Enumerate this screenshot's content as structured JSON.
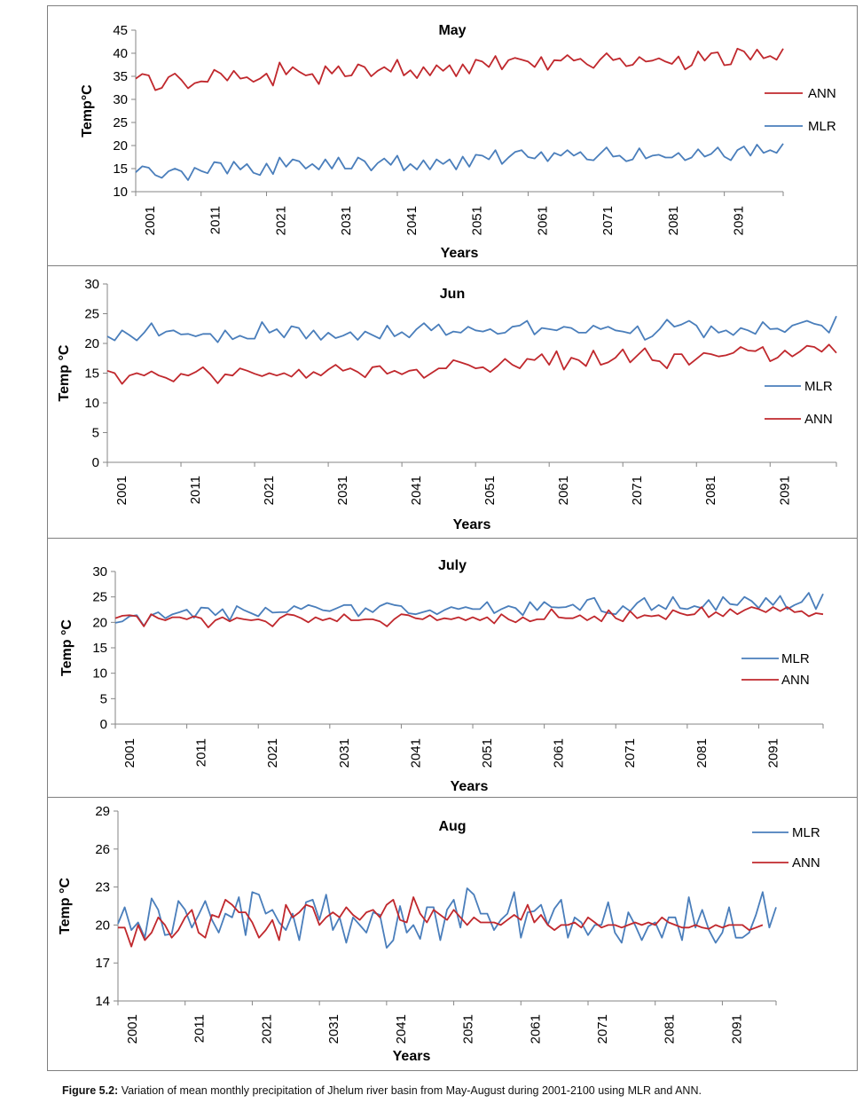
{
  "caption": {
    "label": "Figure 5.2:",
    "text": " Variation of mean monthly precipitation of Jhelum river basin from May-August during 2001-2100 using MLR and ANN."
  },
  "colors": {
    "ANN": "#c0282d",
    "MLR": "#4a7ebb"
  },
  "chart_data": [
    {
      "type": "line",
      "title": "May",
      "xlabel": "Years",
      "ylabel": "Temp°C",
      "ylim": [
        10,
        45
      ],
      "yticks": [
        10,
        15,
        20,
        25,
        30,
        35,
        40,
        45
      ],
      "x_tick_labels": [
        "2001",
        "2011",
        "2021",
        "2031",
        "2041",
        "2051",
        "2061",
        "2071",
        "2081",
        "2091"
      ],
      "x_start": 2001,
      "legend_position": "right",
      "legend_order": [
        "ANN",
        "MLR"
      ],
      "series": [
        {
          "name": "ANN",
          "values": [
            34.5,
            35.5,
            35.2,
            32.0,
            32.5,
            34.8,
            35.6,
            34.2,
            32.4,
            33.5,
            33.9,
            33.8,
            36.4,
            35.6,
            34.1,
            36.2,
            34.5,
            34.8,
            33.8,
            34.5,
            35.6,
            33.0,
            38.0,
            35.4,
            37.0,
            36.0,
            35.2,
            35.5,
            33.3,
            37.2,
            35.6,
            37.2,
            35.0,
            35.2,
            37.6,
            37.0,
            35.0,
            36.2,
            37.0,
            36.0,
            38.6,
            35.2,
            36.3,
            34.6,
            37.0,
            35.2,
            37.4,
            36.2,
            37.4,
            35.0,
            37.6,
            35.6,
            38.6,
            38.2,
            37.0,
            39.4,
            36.5,
            38.5,
            39.0,
            38.6,
            38.2,
            37.0,
            39.2,
            36.4,
            38.5,
            38.4,
            39.6,
            38.4,
            38.8,
            37.6,
            36.8,
            38.6,
            40.0,
            38.5,
            38.9,
            37.2,
            37.5,
            39.2,
            38.2,
            38.4,
            38.9,
            38.2,
            37.7,
            39.3,
            36.5,
            37.4,
            40.4,
            38.4,
            40.0,
            40.2,
            37.4,
            37.6,
            41.0,
            40.4,
            38.6,
            40.8,
            38.9,
            39.4,
            38.6,
            41.0
          ]
        },
        {
          "name": "MLR",
          "values": [
            14.2,
            15.5,
            15.2,
            13.6,
            13.0,
            14.4,
            15.0,
            14.4,
            12.5,
            15.2,
            14.5,
            14.0,
            16.4,
            16.2,
            13.9,
            16.5,
            14.8,
            16.0,
            14.1,
            13.6,
            16.1,
            13.8,
            17.4,
            15.4,
            17.0,
            16.6,
            15.0,
            16.0,
            14.8,
            17.0,
            15.0,
            17.4,
            15.0,
            15.0,
            17.4,
            16.6,
            14.6,
            16.2,
            17.2,
            15.8,
            17.8,
            14.6,
            16.0,
            14.8,
            16.8,
            14.8,
            17.0,
            16.0,
            17.0,
            14.8,
            17.6,
            15.4,
            18.0,
            17.8,
            17.0,
            19.0,
            16.0,
            17.4,
            18.6,
            19.0,
            17.5,
            17.2,
            18.6,
            16.6,
            18.4,
            17.8,
            19.0,
            17.8,
            18.6,
            17.0,
            16.8,
            18.2,
            19.6,
            17.6,
            17.8,
            16.6,
            17.0,
            19.4,
            17.2,
            17.8,
            18.0,
            17.4,
            17.4,
            18.4,
            16.8,
            17.4,
            19.2,
            17.6,
            18.2,
            19.6,
            17.6,
            16.8,
            19.0,
            19.8,
            17.8,
            20.2,
            18.4,
            19.0,
            18.4,
            20.4
          ]
        }
      ]
    },
    {
      "type": "line",
      "title": "Jun",
      "xlabel": "Years",
      "ylabel": "Temp °C",
      "ylim": [
        0,
        30
      ],
      "yticks": [
        0,
        5,
        10,
        15,
        20,
        25,
        30
      ],
      "x_tick_labels": [
        "2001",
        "2011",
        "2021",
        "2031",
        "2041",
        "2051",
        "2061",
        "2071",
        "2081",
        "2091"
      ],
      "x_start": 2001,
      "legend_position": "right",
      "legend_order": [
        "MLR",
        "ANN"
      ],
      "series": [
        {
          "name": "MLR",
          "values": [
            21.2,
            20.5,
            22.2,
            21.4,
            20.5,
            21.8,
            23.4,
            21.3,
            22.0,
            22.2,
            21.5,
            21.6,
            21.2,
            21.6,
            21.6,
            20.2,
            22.2,
            20.7,
            21.3,
            20.8,
            20.8,
            23.6,
            21.8,
            22.4,
            21.0,
            22.9,
            22.6,
            20.8,
            22.2,
            20.6,
            21.8,
            20.9,
            21.3,
            21.9,
            20.6,
            22.0,
            21.4,
            20.8,
            23.0,
            21.2,
            21.9,
            21.0,
            22.4,
            23.4,
            22.2,
            23.2,
            21.4,
            22.0,
            21.8,
            22.8,
            22.2,
            22.0,
            22.4,
            21.6,
            21.8,
            22.8,
            23.0,
            23.8,
            21.5,
            22.6,
            22.4,
            22.2,
            22.8,
            22.6,
            21.8,
            21.8,
            23.0,
            22.4,
            22.8,
            22.2,
            22.0,
            21.7,
            22.9,
            20.6,
            21.2,
            22.4,
            24.0,
            22.8,
            23.2,
            23.8,
            23.0,
            21.0,
            22.9,
            21.8,
            22.2,
            21.4,
            22.6,
            22.2,
            21.6,
            23.6,
            22.4,
            22.5,
            21.9,
            23.0,
            23.4,
            23.8,
            23.3,
            23.0,
            21.8,
            24.6
          ]
        },
        {
          "name": "ANN",
          "values": [
            15.4,
            15.0,
            13.2,
            14.6,
            15.0,
            14.6,
            15.3,
            14.6,
            14.2,
            13.6,
            14.9,
            14.6,
            15.2,
            16.0,
            14.8,
            13.3,
            14.8,
            14.6,
            15.8,
            15.4,
            14.9,
            14.5,
            15.0,
            14.6,
            15.0,
            14.4,
            15.6,
            14.2,
            15.2,
            14.6,
            15.6,
            16.4,
            15.4,
            15.8,
            15.2,
            14.3,
            16.0,
            16.2,
            14.9,
            15.4,
            14.8,
            15.4,
            15.6,
            14.2,
            15.0,
            15.8,
            15.8,
            17.2,
            16.8,
            16.4,
            15.8,
            16.0,
            15.2,
            16.2,
            17.4,
            16.4,
            15.8,
            17.4,
            17.2,
            18.2,
            16.4,
            18.7,
            15.6,
            17.6,
            17.2,
            16.2,
            18.8,
            16.4,
            16.8,
            17.6,
            19.0,
            16.8,
            18.0,
            19.2,
            17.2,
            17.0,
            15.8,
            18.2,
            18.2,
            16.4,
            17.4,
            18.4,
            18.2,
            17.8,
            18.0,
            18.4,
            19.4,
            18.8,
            18.7,
            19.4,
            17.0,
            17.6,
            18.8,
            17.8,
            18.6,
            19.6,
            19.4,
            18.6,
            19.8,
            18.4
          ]
        }
      ]
    },
    {
      "type": "line",
      "title": "July",
      "xlabel": "Years",
      "ylabel": "Temp °C",
      "ylim": [
        0,
        30
      ],
      "yticks": [
        0,
        5,
        10,
        15,
        20,
        25,
        30
      ],
      "x_tick_labels": [
        "2001",
        "2011",
        "2021",
        "2031",
        "2041",
        "2051",
        "2061",
        "2071",
        "2081",
        "2091"
      ],
      "x_start": 2001,
      "legend_position": "right",
      "legend_order": [
        "MLR",
        "ANN"
      ],
      "series": [
        {
          "name": "MLR",
          "values": [
            19.9,
            20.2,
            21.2,
            21.4,
            19.3,
            21.4,
            22.0,
            20.8,
            21.6,
            22.0,
            22.5,
            20.9,
            22.9,
            22.8,
            21.4,
            22.6,
            20.4,
            23.2,
            22.4,
            21.8,
            21.2,
            22.9,
            21.9,
            22.0,
            22.0,
            23.2,
            22.6,
            23.4,
            23.0,
            22.4,
            22.2,
            22.8,
            23.4,
            23.4,
            21.2,
            22.8,
            22.0,
            23.2,
            23.8,
            23.4,
            23.2,
            21.8,
            21.6,
            22.0,
            22.4,
            21.6,
            22.4,
            23.0,
            22.6,
            23.0,
            22.6,
            22.6,
            24.0,
            21.8,
            22.6,
            23.2,
            22.8,
            21.4,
            24.0,
            22.4,
            24.0,
            23.0,
            22.9,
            23.0,
            23.5,
            22.4,
            24.4,
            24.8,
            22.2,
            21.8,
            21.6,
            23.2,
            22.2,
            23.8,
            24.8,
            22.4,
            23.4,
            22.6,
            25.0,
            22.8,
            22.6,
            23.2,
            22.8,
            24.4,
            22.4,
            25.0,
            23.6,
            23.4,
            25.0,
            24.2,
            22.8,
            24.8,
            23.4,
            25.2,
            22.6,
            23.4,
            24.0,
            25.8,
            22.6,
            25.6
          ]
        },
        {
          "name": "ANN",
          "values": [
            20.8,
            21.3,
            21.4,
            21.2,
            19.2,
            21.6,
            20.8,
            20.4,
            21.0,
            21.0,
            20.6,
            21.2,
            20.8,
            19.0,
            20.4,
            21.0,
            20.2,
            20.9,
            20.6,
            20.4,
            20.6,
            20.2,
            19.2,
            20.8,
            21.6,
            21.4,
            20.8,
            20.0,
            21.0,
            20.4,
            20.8,
            20.2,
            21.6,
            20.4,
            20.4,
            20.6,
            20.6,
            20.2,
            19.2,
            20.6,
            21.6,
            21.4,
            20.8,
            20.6,
            21.4,
            20.4,
            20.8,
            20.6,
            21.0,
            20.4,
            21.0,
            20.4,
            21.0,
            19.8,
            21.6,
            20.6,
            20.0,
            21.0,
            20.2,
            20.6,
            20.6,
            22.6,
            21.0,
            20.8,
            20.8,
            21.4,
            20.4,
            21.2,
            20.2,
            22.4,
            20.8,
            20.2,
            22.2,
            20.8,
            21.4,
            21.2,
            21.4,
            20.6,
            22.4,
            21.8,
            21.4,
            21.6,
            23.0,
            21.0,
            22.0,
            21.2,
            22.6,
            21.6,
            22.4,
            23.0,
            22.6,
            22.0,
            23.0,
            22.2,
            23.0,
            22.0,
            22.2,
            21.2,
            21.8,
            21.6
          ]
        }
      ]
    },
    {
      "type": "line",
      "title": "Aug",
      "xlabel": "Years",
      "ylabel": "Temp °C",
      "ylim": [
        14,
        29
      ],
      "yticks": [
        14,
        17,
        20,
        23,
        26,
        29
      ],
      "x_tick_labels": [
        "2001",
        "2011",
        "2021",
        "2031",
        "2041",
        "2051",
        "2061",
        "2071",
        "2081",
        "2091"
      ],
      "x_start": 2001,
      "legend_position": "top-right",
      "legend_order": [
        "MLR",
        "ANN"
      ],
      "series": [
        {
          "name": "MLR",
          "values": [
            20.1,
            21.4,
            19.6,
            20.2,
            19.0,
            22.1,
            21.2,
            19.2,
            19.3,
            21.9,
            21.2,
            19.8,
            20.8,
            21.9,
            20.4,
            19.4,
            20.9,
            20.6,
            22.2,
            19.2,
            22.6,
            22.4,
            20.9,
            21.2,
            20.2,
            19.6,
            20.9,
            18.8,
            21.8,
            22.0,
            20.4,
            22.4,
            19.6,
            20.6,
            18.6,
            20.6,
            20.0,
            19.4,
            21.0,
            20.8,
            18.2,
            18.8,
            21.5,
            19.4,
            20.0,
            18.9,
            21.4,
            21.4,
            18.8,
            21.2,
            22.0,
            19.8,
            22.9,
            22.4,
            20.9,
            20.9,
            19.6,
            20.4,
            20.9,
            22.6,
            19.0,
            21.0,
            21.1,
            21.6,
            20.0,
            21.3,
            22.0,
            19.0,
            20.6,
            20.2,
            19.2,
            20.0,
            20.0,
            21.8,
            19.4,
            18.6,
            21.0,
            20.0,
            18.8,
            19.9,
            20.2,
            19.0,
            20.6,
            20.6,
            18.8,
            22.2,
            19.8,
            21.2,
            19.6,
            18.6,
            19.4,
            21.4,
            19.0,
            19.0,
            19.4,
            20.8,
            22.6,
            19.8,
            21.4
          ]
        },
        {
          "name": "ANN",
          "values": [
            19.8,
            19.8,
            18.3,
            20.0,
            18.8,
            19.4,
            20.6,
            20.0,
            19.0,
            19.6,
            20.6,
            21.2,
            19.4,
            19.0,
            20.8,
            20.6,
            22.0,
            21.6,
            21.0,
            21.0,
            20.2,
            19.0,
            19.6,
            20.4,
            18.8,
            21.6,
            20.6,
            21.0,
            21.6,
            21.4,
            20.0,
            20.6,
            21.0,
            20.6,
            21.4,
            20.8,
            20.4,
            21.0,
            21.2,
            20.6,
            21.6,
            22.0,
            20.4,
            20.2,
            22.2,
            20.9,
            20.2,
            21.2,
            20.8,
            20.4,
            21.2,
            20.6,
            20.0,
            20.6,
            20.2,
            20.2,
            20.2,
            20.0,
            20.4,
            20.8,
            20.4,
            21.6,
            20.2,
            20.8,
            20.0,
            19.6,
            20.0,
            20.0,
            20.2,
            19.8,
            20.6,
            20.2,
            19.8,
            20.0,
            20.0,
            19.8,
            20.0,
            20.2,
            20.0,
            20.2,
            20.0,
            20.6,
            20.2,
            20.0,
            19.8,
            19.8,
            20.0,
            19.8,
            19.7,
            20.0,
            19.8,
            20.0,
            20.0,
            20.0,
            19.6,
            19.8,
            20.0
          ]
        }
      ]
    }
  ]
}
